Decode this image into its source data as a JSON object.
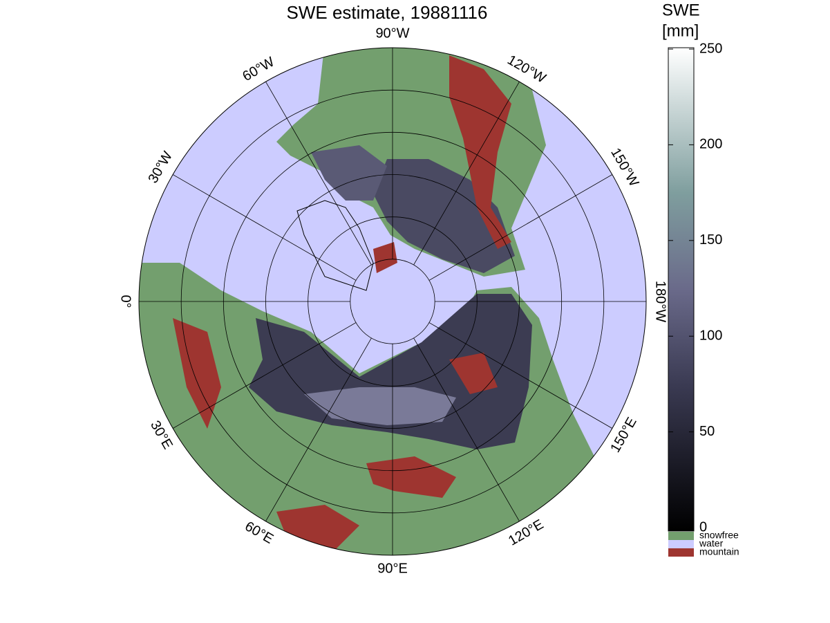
{
  "title": "SWE estimate, 19881116",
  "map": {
    "longitude_labels": [
      "0°",
      "30°E",
      "60°E",
      "90°E",
      "120°E",
      "150°E",
      "180°W",
      "150°W",
      "120°W",
      "90°W",
      "60°W",
      "30°W"
    ]
  },
  "colorbar": {
    "label": [
      "SWE",
      "[mm]"
    ],
    "lim": [
      0,
      250
    ],
    "ticks": [
      0,
      50,
      100,
      150,
      200,
      250
    ],
    "classes": [
      {
        "name": "snowfree",
        "color": "#739f6e"
      },
      {
        "name": "water",
        "color": "#ccccff"
      },
      {
        "name": "mountain",
        "color": "#9e3530"
      }
    ]
  }
}
